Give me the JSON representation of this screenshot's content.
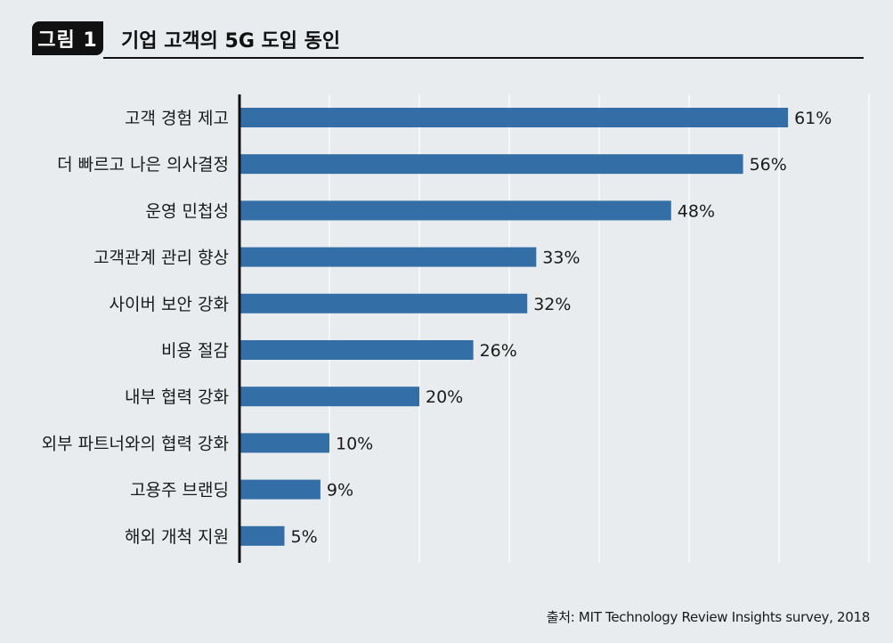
{
  "figure": {
    "label": "그림 1",
    "title": "기업 고객의 5G 도입 동인"
  },
  "source": "출처: MIT Technology Review Insights survey, 2018",
  "colors": {
    "bar": "#336fa6",
    "background": "#e8ecee",
    "axis": "#111111",
    "grid": "#ffffff"
  },
  "chart_data": {
    "type": "bar",
    "orientation": "horizontal",
    "categories": [
      "고객 경험 제고",
      "더 빠르고 나은 의사결정",
      "운영 민첩성",
      "고객관계 관리 향상",
      "사이버 보안 강화",
      "비용 절감",
      "내부 협력 강화",
      "외부 파트너와의 협력 강화",
      "고용주 브랜딩",
      "해외 개척 지원"
    ],
    "values": [
      61,
      56,
      48,
      33,
      32,
      26,
      20,
      10,
      9,
      5
    ],
    "value_labels": [
      "61%",
      "56%",
      "48%",
      "33%",
      "32%",
      "26%",
      "20%",
      "10%",
      "9%",
      "5%"
    ],
    "xlim": [
      0,
      70
    ],
    "grid": true,
    "legend": "none"
  }
}
